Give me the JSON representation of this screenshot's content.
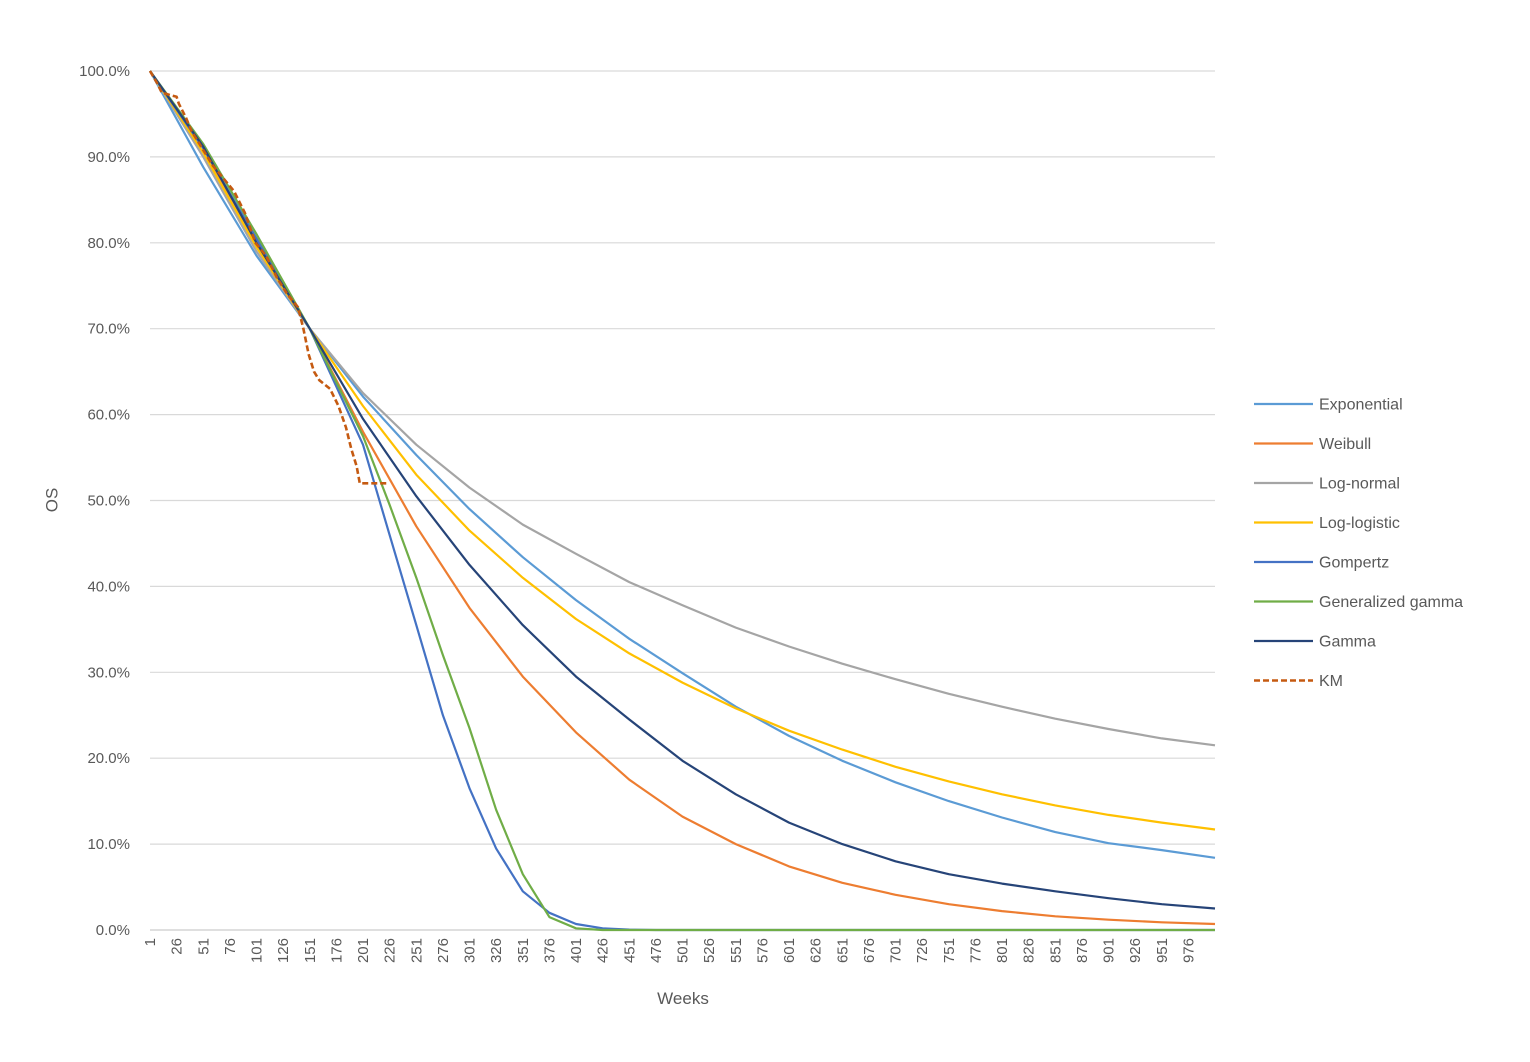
{
  "chart_data": {
    "type": "line",
    "title": "",
    "xlabel": "Weeks",
    "ylabel": "OS",
    "xlim": [
      1,
      1001
    ],
    "ylim": [
      0,
      1
    ],
    "y_ticks": [
      "0.0%",
      "10.0%",
      "20.0%",
      "30.0%",
      "40.0%",
      "50.0%",
      "60.0%",
      "70.0%",
      "80.0%",
      "90.0%",
      "100.0%"
    ],
    "x_ticks": [
      "1",
      "26",
      "51",
      "76",
      "101",
      "126",
      "151",
      "176",
      "201",
      "226",
      "251",
      "276",
      "301",
      "326",
      "351",
      "376",
      "401",
      "426",
      "451",
      "476",
      "501",
      "526",
      "551",
      "576",
      "601",
      "626",
      "651",
      "676",
      "701",
      "726",
      "751",
      "776",
      "801",
      "826",
      "851",
      "876",
      "901",
      "926",
      "951",
      "976"
    ],
    "grid": "horizontal",
    "legend_position": "right",
    "series": [
      {
        "name": "Exponential",
        "color": "#5B9BD5",
        "dash": false,
        "x": [
          1,
          51,
          101,
          151,
          201,
          251,
          301,
          351,
          401,
          451,
          501,
          551,
          601,
          651,
          701,
          751,
          801,
          851,
          901,
          951,
          1001
        ],
        "y": [
          1.0,
          0.888,
          0.785,
          0.7,
          0.621,
          0.553,
          0.49,
          0.434,
          0.384,
          0.339,
          0.299,
          0.26,
          0.226,
          0.197,
          0.172,
          0.15,
          0.131,
          0.114,
          0.101,
          0.093,
          0.084
        ]
      },
      {
        "name": "Weibull",
        "color": "#ED7D31",
        "dash": false,
        "x": [
          1,
          51,
          101,
          151,
          201,
          251,
          301,
          351,
          401,
          451,
          501,
          551,
          601,
          651,
          701,
          751,
          801,
          851,
          901,
          951,
          1001
        ],
        "y": [
          1.0,
          0.91,
          0.8,
          0.7,
          0.58,
          0.47,
          0.375,
          0.295,
          0.23,
          0.175,
          0.132,
          0.1,
          0.074,
          0.055,
          0.041,
          0.03,
          0.022,
          0.016,
          0.012,
          0.009,
          0.007
        ]
      },
      {
        "name": "Log-normal",
        "color": "#A5A5A5",
        "dash": false,
        "x": [
          1,
          51,
          101,
          151,
          201,
          251,
          301,
          351,
          401,
          451,
          501,
          551,
          601,
          651,
          701,
          751,
          801,
          851,
          901,
          951,
          1001
        ],
        "y": [
          1.0,
          0.9,
          0.79,
          0.7,
          0.625,
          0.565,
          0.515,
          0.472,
          0.438,
          0.405,
          0.378,
          0.352,
          0.33,
          0.31,
          0.292,
          0.275,
          0.26,
          0.246,
          0.234,
          0.223,
          0.215
        ]
      },
      {
        "name": "Log-logistic",
        "color": "#FFC000",
        "dash": false,
        "x": [
          1,
          51,
          101,
          151,
          201,
          251,
          301,
          351,
          401,
          451,
          501,
          551,
          601,
          651,
          701,
          751,
          801,
          851,
          901,
          951,
          1001
        ],
        "y": [
          1.0,
          0.905,
          0.795,
          0.7,
          0.61,
          0.53,
          0.465,
          0.41,
          0.362,
          0.322,
          0.288,
          0.258,
          0.232,
          0.21,
          0.19,
          0.173,
          0.158,
          0.145,
          0.134,
          0.125,
          0.117
        ]
      },
      {
        "name": "Gompertz",
        "color": "#4472C4",
        "dash": false,
        "x": [
          1,
          51,
          101,
          151,
          201,
          226,
          251,
          276,
          301,
          326,
          351,
          376,
          401,
          426,
          451,
          476,
          501,
          1001
        ],
        "y": [
          1.0,
          0.91,
          0.805,
          0.7,
          0.565,
          0.46,
          0.355,
          0.25,
          0.165,
          0.095,
          0.045,
          0.02,
          0.007,
          0.002,
          0.0005,
          0.0,
          0.0,
          0.0
        ]
      },
      {
        "name": "Generalized gamma",
        "color": "#70AD47",
        "dash": false,
        "x": [
          1,
          51,
          101,
          151,
          201,
          226,
          251,
          276,
          301,
          326,
          351,
          376,
          401,
          426,
          451,
          1001
        ],
        "y": [
          1.0,
          0.915,
          0.81,
          0.7,
          0.575,
          0.495,
          0.41,
          0.32,
          0.235,
          0.14,
          0.065,
          0.015,
          0.002,
          0.0,
          0.0,
          0.0
        ]
      },
      {
        "name": "Gamma",
        "color": "#264478",
        "dash": false,
        "x": [
          1,
          51,
          101,
          151,
          201,
          251,
          301,
          351,
          401,
          451,
          501,
          551,
          601,
          651,
          701,
          751,
          801,
          851,
          901,
          951,
          1001
        ],
        "y": [
          1.0,
          0.912,
          0.8,
          0.7,
          0.595,
          0.505,
          0.425,
          0.355,
          0.295,
          0.245,
          0.197,
          0.158,
          0.125,
          0.1,
          0.08,
          0.065,
          0.054,
          0.045,
          0.037,
          0.03,
          0.025
        ]
      },
      {
        "name": "KM",
        "color": "#C55A11",
        "dash": true,
        "x": [
          1,
          8,
          12,
          20,
          26,
          28,
          35,
          40,
          50,
          60,
          70,
          80,
          90,
          100,
          110,
          120,
          130,
          140,
          145,
          150,
          155,
          160,
          165,
          170,
          178,
          185,
          190,
          195,
          198,
          205,
          215,
          225
        ],
        "y": [
          1.0,
          0.985,
          0.975,
          0.972,
          0.97,
          0.962,
          0.945,
          0.93,
          0.91,
          0.89,
          0.875,
          0.86,
          0.835,
          0.8,
          0.785,
          0.76,
          0.74,
          0.725,
          0.7,
          0.67,
          0.65,
          0.64,
          0.635,
          0.63,
          0.61,
          0.585,
          0.56,
          0.54,
          0.52,
          0.52,
          0.52,
          0.52
        ]
      }
    ]
  }
}
